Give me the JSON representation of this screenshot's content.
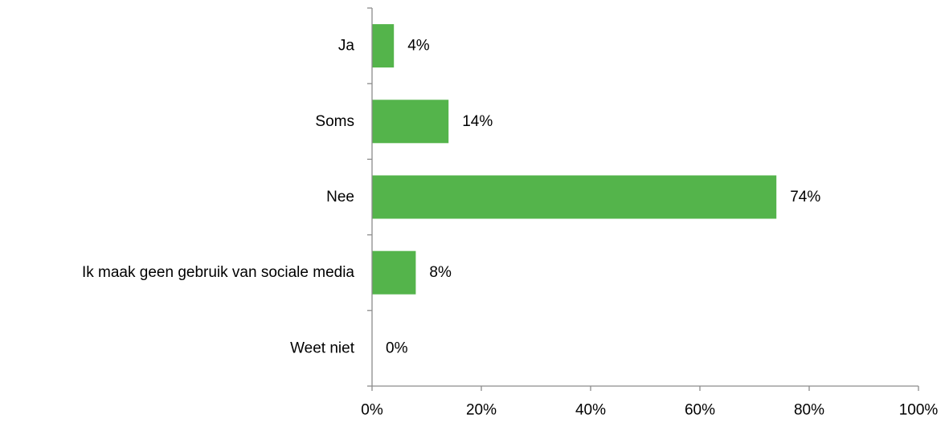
{
  "chart_data": {
    "type": "bar",
    "orientation": "horizontal",
    "title": "",
    "xlabel": "",
    "ylabel": "",
    "categories": [
      "Ja",
      "Soms",
      "Nee",
      "Ik maak geen gebruik van sociale media",
      "Weet niet"
    ],
    "values": [
      4,
      14,
      74,
      8,
      0
    ],
    "value_labels": [
      "4%",
      "14%",
      "74%",
      "8%",
      "0%"
    ],
    "xlim": [
      0,
      100
    ],
    "x_ticks": [
      0,
      20,
      40,
      60,
      80,
      100
    ],
    "x_tick_labels": [
      "0%",
      "20%",
      "40%",
      "60%",
      "80%",
      "100%"
    ],
    "bar_color": "#54b44b",
    "axis_color": "#8c8c8c",
    "grid": false,
    "legend": "none"
  }
}
